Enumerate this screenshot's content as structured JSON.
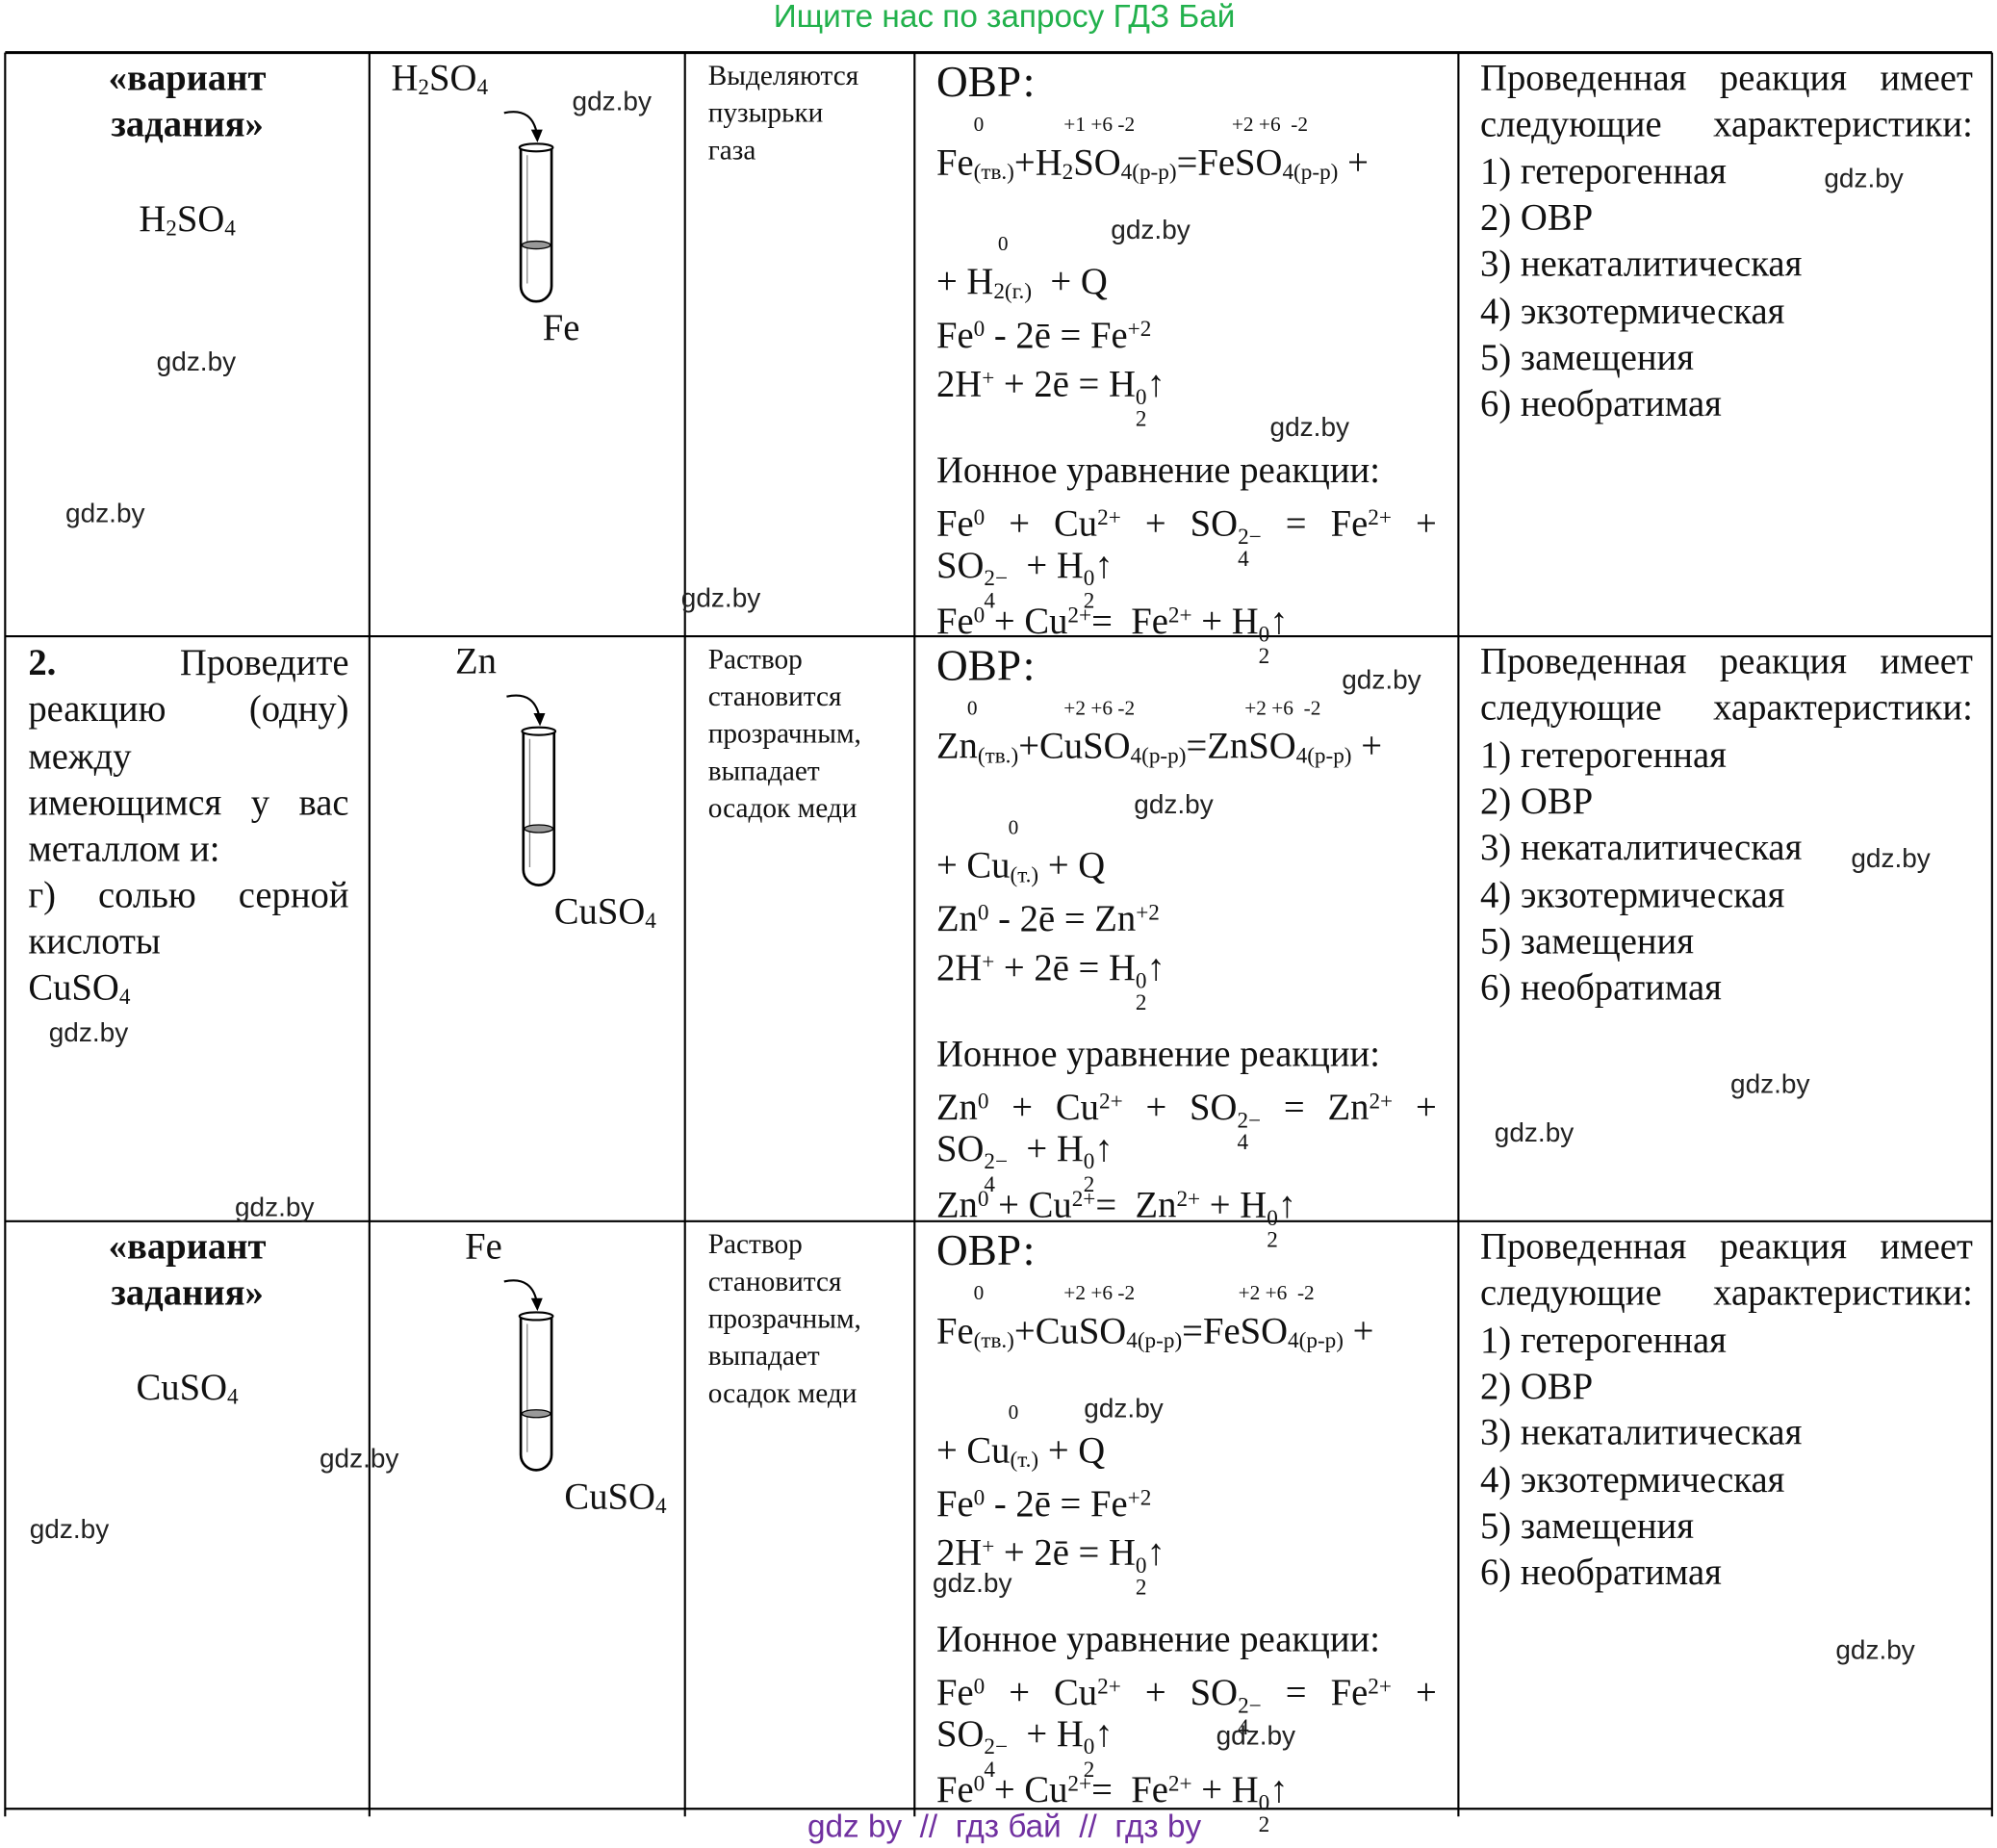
{
  "header": {
    "title": "Ищите нас по запросу ГДЗ Бай"
  },
  "table": {
    "rows": [
      {
        "task": {
          "heading": [
            "«вариант",
            "задания»"
          ],
          "formula": [
            "H",
            {
              "sub": "2"
            },
            "SO",
            {
              "sub": "4"
            }
          ]
        },
        "tube": {
          "top": [
            "H",
            {
              "sub": "2"
            },
            "SO",
            {
              "sub": "4"
            }
          ],
          "bottom": [
            "Fe"
          ]
        },
        "observation": [
          "Выделяются",
          "пузырьки",
          "газа"
        ],
        "equation": {
          "title": "ОВР:",
          "oxidation": [
            "0",
            "+1 +6 -2",
            "+2 +6  -2"
          ],
          "reaction": [
            "Fe",
            {
              "sub": "(тв.)"
            },
            "+H",
            {
              "sub": "2"
            },
            "SO",
            {
              "sub": "4(р-р)"
            },
            "=FeSO",
            {
              "sub": "4(р-р)"
            },
            " +"
          ],
          "oxidation2": "0",
          "reaction2": [
            "+ H",
            {
              "sub": "2(г.)"
            },
            "  + Q"
          ],
          "half_reactions": [
            [
              "Fe",
              {
                "sup": "0"
              },
              " - 2ē = Fe",
              {
                "sup": "+2"
              }
            ],
            [
              "2H",
              {
                "sup": "+"
              },
              " + 2ē = H",
              {
                "sub": "2",
                "sup": "0"
              },
              "↑"
            ]
          ],
          "ionic_title": "Ионное уравнение реакции:",
          "ionic": [
            [
              "Fe",
              {
                "sup": "0"
              },
              " + Cu",
              {
                "sup": "2+"
              },
              " + SO",
              {
                "sub": "4",
                "sup": "2−"
              },
              " = Fe",
              {
                "sup": "2+"
              },
              " +"
            ],
            [
              "SO",
              {
                "sub": "4",
                "sup": "2−"
              },
              "  + H",
              {
                "sub": "2",
                "sup": "0"
              },
              "↑"
            ],
            [
              "Fe",
              {
                "sup": "0"
              },
              " + Cu",
              {
                "sup": "2+"
              },
              "=  Fe",
              {
                "sup": "2+"
              },
              " + H",
              {
                "sub": "2",
                "sup": "0"
              },
              "↑"
            ]
          ]
        },
        "characteristics": [
          "Проведенная реакция имеет",
          "следующие характеристики:",
          "1) гетерогенная",
          "2) ОВР",
          "3) некаталитическая",
          "4) экзотермическая",
          "5) замещения",
          "6) необратимая"
        ]
      },
      {
        "task": {
          "number": "2.",
          "lines": [
            "Проведите",
            "реакцию (одну)",
            "между",
            "имеющимся у вас",
            "металлом и:",
            "г) солью серной",
            "кислоты"
          ],
          "formula": [
            "CuSO",
            {
              "sub": "4"
            }
          ]
        },
        "tube": {
          "top": [
            "Zn"
          ],
          "bottom": [
            "CuSO",
            {
              "sub": "4"
            }
          ]
        },
        "observation": [
          "Раствор",
          "становится",
          "прозрачным,",
          "выпадает",
          "осадок меди"
        ],
        "equation": {
          "title": "ОВР:",
          "oxidation": [
            "0",
            "+2 +6 -2",
            "+2 +6  -2"
          ],
          "reaction": [
            "Zn",
            {
              "sub": "(тв.)"
            },
            "+CuSO",
            {
              "sub": "4(р-р)"
            },
            "=ZnSO",
            {
              "sub": "4(р-р)"
            },
            " +"
          ],
          "oxidation2": "0",
          "reaction2": [
            "+ Cu",
            {
              "sub": "(т.)"
            },
            " + Q"
          ],
          "half_reactions": [
            [
              "Zn",
              {
                "sup": "0"
              },
              " - 2ē = Zn",
              {
                "sup": "+2"
              }
            ],
            [
              "2H",
              {
                "sup": "+"
              },
              " + 2ē = H",
              {
                "sub": "2",
                "sup": "0"
              },
              "↑"
            ]
          ],
          "ionic_title": "Ионное уравнение реакции:",
          "ionic": [
            [
              "Zn",
              {
                "sup": "0"
              },
              " + Cu",
              {
                "sup": "2+"
              },
              " + SO",
              {
                "sub": "4",
                "sup": "2−"
              },
              " = Zn",
              {
                "sup": "2+"
              },
              " +"
            ],
            [
              "SO",
              {
                "sub": "4",
                "sup": "2−"
              },
              "  + H",
              {
                "sub": "2",
                "sup": "0"
              },
              "↑"
            ],
            [
              "Zn",
              {
                "sup": "0"
              },
              " + Cu",
              {
                "sup": "2+"
              },
              "=  Zn",
              {
                "sup": "2+"
              },
              " + H",
              {
                "sub": "2",
                "sup": "0"
              },
              "↑"
            ]
          ]
        },
        "characteristics": [
          "Проведенная реакция имеет",
          "следующие характеристики:",
          "1) гетерогенная",
          "2) ОВР",
          "3) некаталитическая",
          "4) экзотермическая",
          "5) замещения",
          "6) необратимая"
        ]
      },
      {
        "task": {
          "heading": [
            "«вариант",
            "задания»"
          ],
          "formula": [
            "CuSO",
            {
              "sub": "4"
            }
          ]
        },
        "tube": {
          "top": [
            "Fe"
          ],
          "bottom": [
            "CuSO",
            {
              "sub": "4"
            }
          ]
        },
        "observation": [
          "Раствор",
          "становится",
          "прозрачным,",
          "выпадает",
          "осадок меди"
        ],
        "equation": {
          "title": "ОВР:",
          "oxidation": [
            "0",
            "+2 +6 -2",
            "+2 +6  -2"
          ],
          "reaction": [
            "Fe",
            {
              "sub": "(тв.)"
            },
            "+CuSO",
            {
              "sub": "4(р-р)"
            },
            "=FeSO",
            {
              "sub": "4(р-р)"
            },
            " +"
          ],
          "oxidation2": "0",
          "reaction2": [
            "+ Cu",
            {
              "sub": "(т.)"
            },
            " + Q"
          ],
          "half_reactions": [
            [
              "Fe",
              {
                "sup": "0"
              },
              " - 2ē = Fe",
              {
                "sup": "+2"
              }
            ],
            [
              "2H",
              {
                "sup": "+"
              },
              " + 2ē = H",
              {
                "sub": "2",
                "sup": "0"
              },
              "↑"
            ]
          ],
          "ionic_title": "Ионное уравнение реакции:",
          "ionic": [
            [
              "Fe",
              {
                "sup": "0"
              },
              " + Cu",
              {
                "sup": "2+"
              },
              " + SO",
              {
                "sub": "4",
                "sup": "2−"
              },
              " = Fe",
              {
                "sup": "2+"
              },
              " +"
            ],
            [
              "SO",
              {
                "sub": "4",
                "sup": "2−"
              },
              "  + H",
              {
                "sub": "2",
                "sup": "0"
              },
              "↑"
            ],
            [
              "Fe",
              {
                "sup": "0"
              },
              " + Cu",
              {
                "sup": "2+"
              },
              "=  Fe",
              {
                "sup": "2+"
              },
              " + H",
              {
                "sub": "2",
                "sup": "0"
              },
              "↑"
            ]
          ]
        },
        "characteristics": [
          "Проведенная реакция имеет",
          "следующие характеристики:",
          "1) гетерогенная",
          "2) ОВР",
          "3) некаталитическая",
          "4) экзотермическая",
          "5) замещения",
          "6) необратимая"
        ]
      }
    ]
  },
  "watermarks": [
    "gdz.by",
    "gdz.by",
    "gdz.by",
    "gdz.by",
    "gdz.by",
    "gdz.by",
    "gdz.by",
    "gdz.by",
    "gdz.by",
    "gdz.by",
    "gdz.by",
    "gdz.by",
    "gdz.by",
    "gdz.by",
    "gdz.by",
    "gdz.by",
    "gdz.by",
    "gdz.by",
    "gdz.by",
    "gdz.by"
  ],
  "footer": {
    "text": "gdz by  //  гдз бай  //  гдз by"
  }
}
